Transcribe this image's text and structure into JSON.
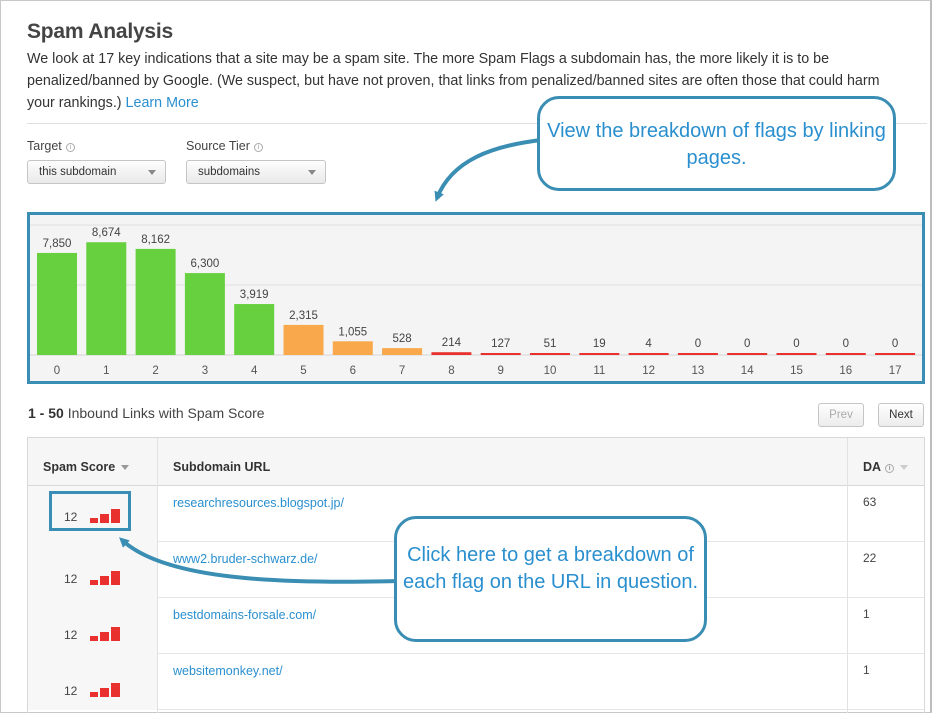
{
  "title": "Spam Analysis",
  "intro": {
    "text": "We look at 17 key indications that a site may be a spam site. The more Spam Flags a subdomain has, the more likely it is to be penalized/banned by Google. (We suspect, but have not proven, that links from penalized/banned sites are often those that could harm your rankings.)",
    "link_label": "Learn More"
  },
  "filters": {
    "target": {
      "label": "Target",
      "value": "this subdomain"
    },
    "source_tier": {
      "label": "Source Tier",
      "value": "subdomains"
    }
  },
  "chart_data": {
    "type": "bar",
    "categories": [
      "0",
      "1",
      "2",
      "3",
      "4",
      "5",
      "6",
      "7",
      "8",
      "9",
      "10",
      "11",
      "12",
      "13",
      "14",
      "15",
      "16",
      "17"
    ],
    "values": [
      7850,
      8674,
      8162,
      6300,
      3919,
      2315,
      1055,
      528,
      214,
      127,
      51,
      19,
      4,
      0,
      0,
      0,
      0,
      0
    ],
    "value_labels": [
      "7,850",
      "8,674",
      "8,162",
      "6,300",
      "3,919",
      "2,315",
      "1,055",
      "528",
      "214",
      "127",
      "51",
      "19",
      "4",
      "0",
      "0",
      "0",
      "0",
      "0"
    ],
    "bar_colors": {
      "low": "#66d03f",
      "medium": "#f9a94b",
      "high": "#e8312f"
    },
    "risk_levels": [
      "low",
      "low",
      "low",
      "low",
      "low",
      "medium",
      "medium",
      "medium",
      "high",
      "high",
      "high",
      "high",
      "high",
      "high",
      "high",
      "high",
      "high",
      "high"
    ],
    "title": "",
    "xlabel": "",
    "ylabel": "",
    "ylim": [
      0,
      10000
    ],
    "grid": true
  },
  "list": {
    "range": "1 - 50",
    "title": "Inbound Links with Spam Score",
    "prev_label": "Prev",
    "next_label": "Next"
  },
  "table": {
    "columns": {
      "spam_score": "Spam Score",
      "url": "Subdomain URL",
      "da": "DA"
    },
    "rows": [
      {
        "score": "12",
        "url": "researchresources.blogspot.jp/",
        "da": "63"
      },
      {
        "score": "12",
        "url": "www2.bruder-schwarz.de/",
        "da": "22"
      },
      {
        "score": "12",
        "url": "bestdomains-forsale.com/",
        "da": "1"
      },
      {
        "score": "12",
        "url": "websitemonkey.net/",
        "da": "1"
      }
    ]
  },
  "callouts": {
    "top": "View the breakdown of flags by linking pages.",
    "bottom": "Click here to get a breakdown of each flag on the URL in question."
  },
  "colors": {
    "accent": "#3a8db3",
    "link": "#2a8fcf",
    "spam_bar": "#e8312f"
  }
}
